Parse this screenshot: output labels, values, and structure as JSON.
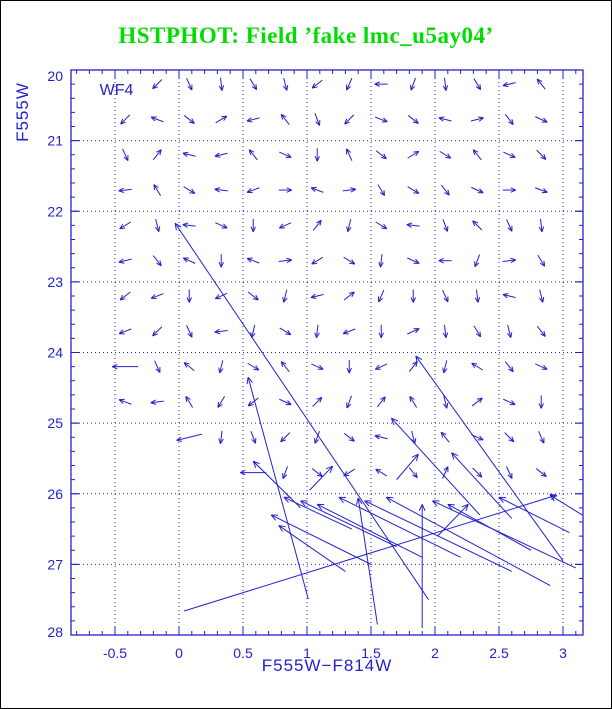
{
  "title": {
    "text": "HSTPHOT: Field ’fake lmc_u5ay04’",
    "color": "#00dd00"
  },
  "chart_data": {
    "type": "scatter",
    "style": "quiver_vector_field_on_cmd",
    "title": "HSTPHOT: Field ’fake lmc_u5ay04’",
    "xlabel": "F555W−F814W",
    "ylabel": "F555W",
    "xlim": [
      -0.84,
      3.16
    ],
    "ylim": [
      28,
      20
    ],
    "y_axis_inverted": true,
    "grid": "dotted lines at major ticks, both axes",
    "legend": "none",
    "axis_color": "#2222cc",
    "x_major_ticks": [
      -0.5,
      0,
      0.5,
      1,
      1.5,
      2,
      2.5,
      3
    ],
    "x_tick_labels": [
      "-0.5",
      "0",
      "0.5",
      "1",
      "1.5",
      "2",
      "2.5",
      "3"
    ],
    "x_minor_step": 0.1,
    "y_major_ticks": [
      20,
      21,
      22,
      23,
      24,
      25,
      26,
      27,
      28
    ],
    "y_tick_labels": [
      "20",
      "21",
      "22",
      "23",
      "24",
      "25",
      "26",
      "27",
      "28"
    ],
    "y_minor_step": 0.2,
    "annotation": {
      "text": "WF4",
      "x": -0.62,
      "y": 20.28
    },
    "small_arrow_grid": {
      "comment": "grid of short recovery vectors; dirs are compass codes, lowercase w = longer west arrow, empty = no arrow",
      "colors": [
        -0.42,
        -0.17,
        0.08,
        0.33,
        0.58,
        0.83,
        1.08,
        1.33,
        1.58,
        1.83,
        2.08,
        2.33,
        2.58,
        2.83
      ],
      "rows": [
        {
          "mag": 20.2,
          "dirs": [
            "",
            "SW",
            "SE",
            "S",
            "SE",
            "S",
            "SW",
            "SW",
            "W",
            "S",
            "S",
            "SE",
            "W",
            "NW"
          ]
        },
        {
          "mag": 20.7,
          "dirs": [
            "SW",
            "W",
            "SE",
            "NE",
            "W",
            "NW",
            "S",
            "SW",
            "E",
            "SE",
            "W",
            "E",
            "SE",
            "SE"
          ]
        },
        {
          "mag": 21.2,
          "dirs": [
            "SE",
            "NE",
            "W",
            "W",
            "NW",
            "SE",
            "S",
            "NW",
            "SE",
            "NE",
            "SE",
            "NW",
            "SE",
            "SE"
          ]
        },
        {
          "mag": 21.7,
          "dirs": [
            "W",
            "NW",
            "SE",
            "W",
            "W",
            "E",
            "W",
            "E",
            "SE",
            "SE",
            "SE",
            "SE",
            "E",
            "E"
          ]
        },
        {
          "mag": 22.2,
          "dirs": [
            "SW",
            "S",
            "W",
            "SE",
            "S",
            "SW",
            "NE",
            "S",
            "SE",
            "W",
            "S",
            "NW",
            "SE",
            "S"
          ]
        },
        {
          "mag": 22.7,
          "dirs": [
            "W",
            "SE",
            "NW",
            "S",
            "W",
            "E",
            "SW",
            "SE",
            "S",
            "SE",
            "W",
            "S",
            "E",
            "SE"
          ]
        },
        {
          "mag": 23.2,
          "dirs": [
            "SW",
            "W",
            "S",
            "SW",
            "SE",
            "S",
            "W",
            "NE",
            "SW",
            "S",
            "SE",
            "S",
            "W",
            "S"
          ]
        },
        {
          "mag": 23.7,
          "dirs": [
            "W",
            "SW",
            "SE",
            "W",
            "S",
            "SE",
            "S",
            "W",
            "S",
            "NE",
            "S",
            "SE",
            "S",
            "SE"
          ]
        },
        {
          "mag": 24.2,
          "dirs": [
            "w",
            "SE",
            "NW",
            "S",
            "SE",
            "NW",
            "SE",
            "S",
            "SW",
            "NE",
            "S",
            "NW",
            "SE",
            "SE"
          ]
        },
        {
          "mag": 24.7,
          "dirs": [
            "W",
            "W",
            "NW",
            "SW",
            "SW",
            "SE",
            "NE",
            "S",
            "NE",
            "NW",
            "S",
            "NE",
            "SE",
            "S"
          ]
        },
        {
          "mag": 25.2,
          "dirs": [
            "",
            "",
            "w",
            "S",
            "S",
            "SW",
            "S",
            "SE",
            "W",
            "S",
            "NW",
            "SE",
            "SE",
            "SE"
          ]
        },
        {
          "mag": 25.7,
          "dirs": [
            "",
            "",
            "",
            "",
            "w",
            "S",
            "SE",
            "SW",
            "NW",
            "SE",
            "NE",
            "SE",
            "SE",
            "SE"
          ]
        }
      ]
    },
    "long_arrows": {
      "comment": "large recovery vectors [tail_color, tail_mag, head_color, head_mag]; arrowhead drawn at head end",
      "segments": [
        [
          1.01,
          27.49,
          0.54,
          24.35
        ],
        [
          0.04,
          27.66,
          2.95,
          26.02
        ],
        [
          1.95,
          27.5,
          -0.03,
          22.17
        ],
        [
          1.9,
          27.9,
          1.9,
          26.15
        ],
        [
          1.55,
          27.85,
          1.4,
          26.06
        ],
        [
          3.0,
          26.95,
          1.85,
          24.05
        ],
        [
          2.35,
          26.3,
          1.66,
          24.93
        ],
        [
          2.6,
          26.35,
          2.13,
          25.42
        ],
        [
          0.95,
          26.2,
          0.58,
          25.54
        ],
        [
          1.35,
          26.5,
          0.82,
          26.05
        ],
        [
          1.7,
          26.75,
          0.95,
          26.1
        ],
        [
          1.9,
          26.9,
          1.08,
          26.15
        ],
        [
          1.5,
          27.0,
          0.72,
          26.3
        ],
        [
          1.3,
          27.1,
          0.78,
          26.45
        ],
        [
          2.2,
          26.9,
          1.25,
          26.05
        ],
        [
          2.6,
          27.1,
          1.45,
          26.1
        ],
        [
          2.9,
          27.3,
          1.62,
          26.05
        ],
        [
          3.1,
          27.05,
          1.98,
          26.1
        ],
        [
          3.05,
          26.55,
          2.5,
          26.05
        ],
        [
          3.15,
          26.3,
          2.9,
          26.02
        ],
        [
          2.75,
          26.8,
          2.1,
          26.15
        ],
        [
          1.02,
          25.95,
          1.2,
          25.61
        ],
        [
          1.7,
          25.8,
          1.87,
          25.44
        ],
        [
          2.02,
          26.6,
          2.26,
          26.15
        ]
      ]
    }
  }
}
